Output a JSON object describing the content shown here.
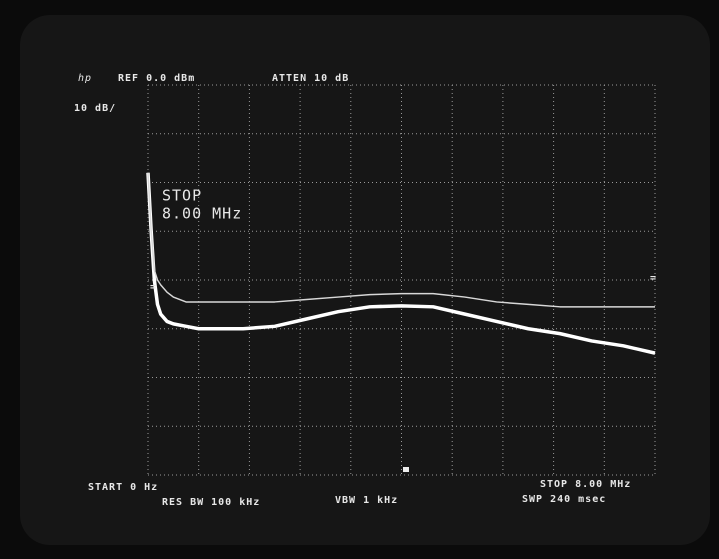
{
  "chart_data": {
    "type": "line",
    "annotations": [
      "hp",
      "REF 0.0 dBm",
      "ATTEN 10 dB",
      "10 dB/",
      "STOP",
      "8.00 MHz",
      "START 0 Hz",
      "RES BW 100 kHz",
      "VBW 1 kHz",
      "STOP 8.00 MHz",
      "SWP 240 msec"
    ],
    "x": [
      0,
      0.05,
      0.1,
      0.15,
      0.2,
      0.3,
      0.4,
      0.6,
      0.8,
      1.0,
      1.5,
      2,
      2.5,
      3,
      3.5,
      4,
      4.5,
      5,
      5.5,
      6,
      6.5,
      7,
      7.5,
      8
    ],
    "series": [
      {
        "color": "#ffffff",
        "values": [
          -18,
          -30,
          -40,
          -45,
          -47,
          -48.5,
          -49,
          -49.5,
          -50,
          -50,
          -50,
          -49.5,
          -48,
          -46.5,
          -45.5,
          -45.3,
          -45.5,
          -47,
          -48.5,
          -50,
          -51,
          -52.5,
          -53.5,
          -55
        ]
      },
      {
        "color": "#d8d8d8",
        "values": [
          -18,
          -30,
          -38,
          -40,
          -41,
          -42.5,
          -43.5,
          -44.5,
          -44.5,
          -44.5,
          -44.5,
          -44.5,
          -44,
          -43.5,
          -43,
          -42.8,
          -42.8,
          -43.5,
          -44.5,
          -45,
          -45.5,
          -45.5,
          -45.5,
          -45.5
        ]
      }
    ],
    "xlim": [
      0,
      8
    ],
    "ylim": [
      -80,
      0
    ],
    "xticks": [
      0,
      0.8,
      1.6,
      2.4,
      3.2,
      4,
      4.8,
      5.6,
      6.4,
      7.2,
      8
    ],
    "yticks": [
      -80,
      -70,
      -60,
      -50,
      -40,
      -30,
      -20,
      -10,
      0
    ],
    "grid": true
  }
}
